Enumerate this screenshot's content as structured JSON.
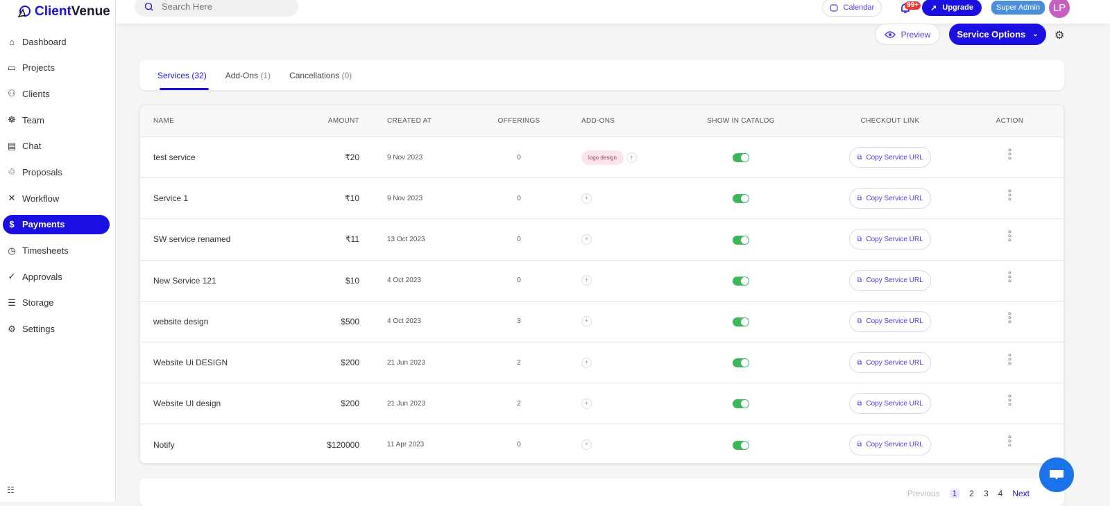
{
  "brand": {
    "name_a": "Client",
    "name_b": "Venue"
  },
  "sidebar": {
    "items": [
      {
        "label": "Dashboard",
        "icon": "home-icon"
      },
      {
        "label": "Projects",
        "icon": "folder-icon"
      },
      {
        "label": "Clients",
        "icon": "users-icon"
      },
      {
        "label": "Team",
        "icon": "team-icon"
      },
      {
        "label": "Chat",
        "icon": "chat-icon"
      },
      {
        "label": "Proposals",
        "icon": "handshake-icon"
      },
      {
        "label": "Workflow",
        "icon": "tools-icon"
      },
      {
        "label": "Payments",
        "icon": "payment-icon",
        "active": true
      },
      {
        "label": "Timesheets",
        "icon": "timer-icon"
      },
      {
        "label": "Approvals",
        "icon": "check-circle-icon"
      },
      {
        "label": "Storage",
        "icon": "database-icon"
      },
      {
        "label": "Settings",
        "icon": "gear-icon"
      }
    ],
    "collapse_icon": "collapse-icon"
  },
  "header": {
    "search_placeholder": "Search Here",
    "calendar": "Calendar",
    "notif_count": "99+",
    "upgrade": "Upgrade",
    "role": "Super Admin",
    "avatar": "LP"
  },
  "actions": {
    "preview": "Preview",
    "service_options": "Service Options"
  },
  "tabs": [
    {
      "label": "Services",
      "count": "(32)",
      "active": true
    },
    {
      "label": "Add-Ons",
      "count": "(1)"
    },
    {
      "label": "Cancellations",
      "count": "(0)"
    }
  ],
  "table": {
    "columns": [
      "NAME",
      "AMOUNT",
      "CREATED AT",
      "OFFERINGS",
      "ADD-ONS",
      "SHOW IN CATALOG",
      "CHECKOUT LINK",
      "ACTION"
    ],
    "copy_label": "Copy Service URL",
    "rows": [
      {
        "name": "test service",
        "amount": "₹20",
        "created": "9 Nov 2023",
        "offerings": "0",
        "addons": [
          "logo design"
        ],
        "catalog": true
      },
      {
        "name": "Service 1",
        "amount": "₹10",
        "created": "9 Nov 2023",
        "offerings": "0",
        "addons": [],
        "catalog": true
      },
      {
        "name": "SW service renamed",
        "amount": "₹11",
        "created": "13 Oct 2023",
        "offerings": "0",
        "addons": [],
        "catalog": true
      },
      {
        "name": "New Service 121",
        "amount": "$10",
        "created": "4 Oct 2023",
        "offerings": "0",
        "addons": [],
        "catalog": true
      },
      {
        "name": "website design",
        "amount": "$500",
        "created": "4 Oct 2023",
        "offerings": "3",
        "addons": [],
        "catalog": true
      },
      {
        "name": "Website Ui DESIGN",
        "amount": "$200",
        "created": "21 Jun 2023",
        "offerings": "2",
        "addons": [],
        "catalog": true
      },
      {
        "name": "Website UI design",
        "amount": "$200",
        "created": "21 Jun 2023",
        "offerings": "2",
        "addons": [],
        "catalog": true
      },
      {
        "name": "Notify",
        "amount": "$120000",
        "created": "11 Apr 2023",
        "offerings": "0",
        "addons": [],
        "catalog": true
      }
    ]
  },
  "pagination": {
    "prev": "Previous",
    "pages": [
      "1",
      "2",
      "3",
      "4"
    ],
    "current": "1",
    "next": "Next"
  },
  "colors": {
    "accent": "#1a0fe0",
    "toggle_on": "#3cb85a",
    "chat_bubble": "#1a73e8"
  }
}
